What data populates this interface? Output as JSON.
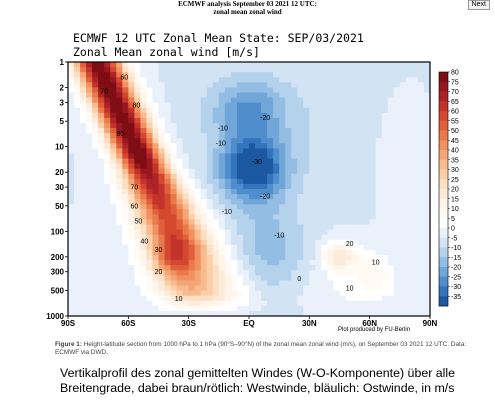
{
  "header": {
    "line1": "ECMWF analysis September 03 2021 12 UTC:",
    "line2": "zonal mean zonal wind",
    "next_button": "Next"
  },
  "figure": {
    "title": "ECMWF 12 UTC Zonal Mean State: SEP/03/2021",
    "subtitle": "Zonal Mean zonal wind [m/s]",
    "credit": "Plot produced by FU-Berlin"
  },
  "caption": {
    "label": "Figure 1:",
    "text": " Height-latitude section from 1000 hPa to 1 hPa (90°S–90°N) of the zonal mean zonal wind (m/s), on September 03 2021 12 UTC. Data: ECMWF via DWD."
  },
  "description": "Vertikalprofil des zonal gemittelten Windes (W-O-Komponente) über alle Breitengrade, dabei braun/rötlich: Westwinde, bläulich: Ostwinde, in m/s",
  "chart_data": {
    "type": "heatmap",
    "title": "ECMWF 12 UTC Zonal Mean State: SEP/03/2021",
    "subtitle": "Zonal Mean zonal wind [m/s]",
    "xlabel": "",
    "ylabel": "",
    "x_ticks": [
      "90S",
      "60S",
      "30S",
      "EQ",
      "30N",
      "60N",
      "90N"
    ],
    "x_lim": [
      -90,
      90
    ],
    "y_ticks": [
      1,
      2,
      3,
      5,
      10,
      20,
      30,
      50,
      100,
      200,
      300,
      500,
      1000
    ],
    "y_lim": [
      1000,
      1
    ],
    "y_scale": "log",
    "colorbar_levels": [
      80,
      75,
      70,
      65,
      60,
      55,
      50,
      45,
      40,
      35,
      30,
      25,
      20,
      15,
      10,
      5,
      0,
      -5,
      -10,
      -15,
      -20,
      -25,
      -30,
      -35
    ],
    "colorbar_colors": [
      "#7e0d14",
      "#971820",
      "#ae2327",
      "#c3322b",
      "#d44830",
      "#e0603c",
      "#ea7a4c",
      "#f19060",
      "#f5a676",
      "#f8bb8e",
      "#fbcfa8",
      "#fddfc3",
      "#fdebd9",
      "#fef4ea",
      "#fffaf4",
      "#ffffff",
      "#eaf1fa",
      "#d2e3f4",
      "#b5d2ec",
      "#94bde3",
      "#71a6d9",
      "#4f8dcc",
      "#3374bd",
      "#1c58a2"
    ],
    "contour_labels": [
      {
        "lat": -62,
        "p": 1.5,
        "value": 60
      },
      {
        "lat": -72,
        "p": 2.2,
        "value": 70
      },
      {
        "lat": -56,
        "p": 3.2,
        "value": 80
      },
      {
        "lat": -64,
        "p": 7,
        "value": 80
      },
      {
        "lat": -57,
        "p": 30,
        "value": 70
      },
      {
        "lat": -57,
        "p": 50,
        "value": 60
      },
      {
        "lat": -55,
        "p": 75,
        "value": 50
      },
      {
        "lat": -52,
        "p": 130,
        "value": 40
      },
      {
        "lat": -45,
        "p": 165,
        "value": 30
      },
      {
        "lat": -45,
        "p": 300,
        "value": 20
      },
      {
        "lat": -35,
        "p": 620,
        "value": 10
      },
      {
        "lat": -13,
        "p": 6,
        "value": -10
      },
      {
        "lat": 8,
        "p": 4.5,
        "value": -20
      },
      {
        "lat": -14,
        "p": 9,
        "value": -10
      },
      {
        "lat": 4,
        "p": 15,
        "value": -30
      },
      {
        "lat": 8,
        "p": 38,
        "value": -20
      },
      {
        "lat": -11,
        "p": 58,
        "value": -10
      },
      {
        "lat": 15,
        "p": 110,
        "value": -10
      },
      {
        "lat": 50,
        "p": 140,
        "value": 20
      },
      {
        "lat": 63,
        "p": 230,
        "value": 10
      },
      {
        "lat": 25,
        "p": 360,
        "value": 0
      },
      {
        "lat": 50,
        "p": 470,
        "value": 10
      }
    ]
  }
}
